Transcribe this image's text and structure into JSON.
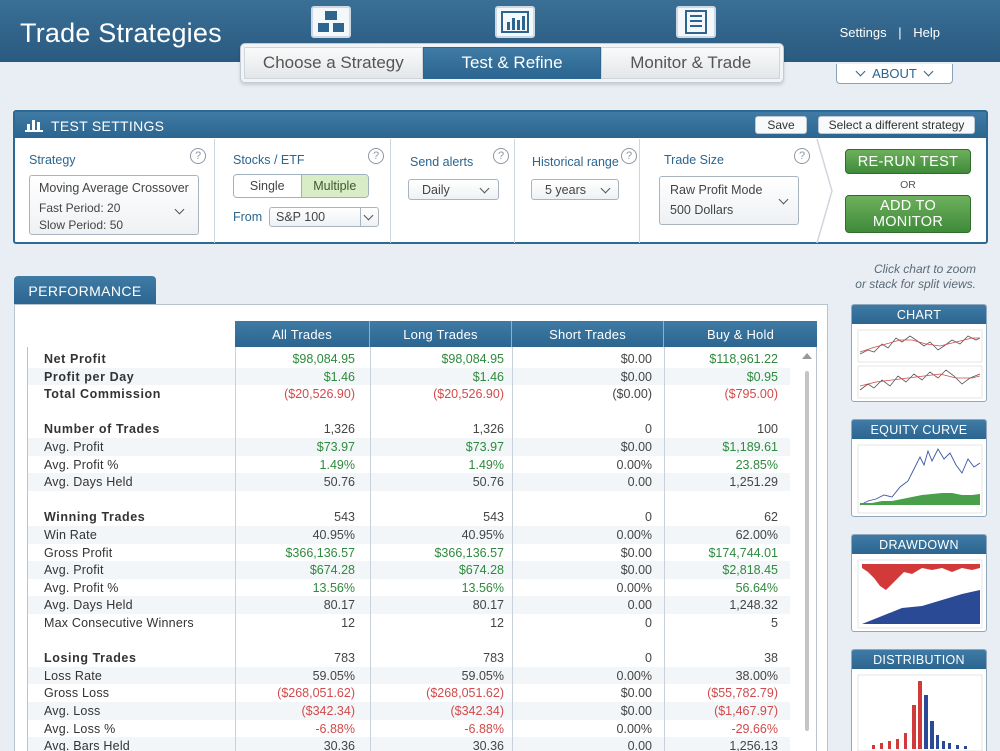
{
  "header": {
    "title": "Trade Strategies",
    "links": [
      "Settings",
      "|",
      "Help"
    ],
    "tabs": [
      {
        "label": "Choose a Strategy",
        "active": false
      },
      {
        "label": "Test & Refine",
        "active": true
      },
      {
        "label": "Monitor & Trade",
        "active": false
      }
    ],
    "about_label": "ABOUT"
  },
  "settings": {
    "title": "TEST SETTINGS",
    "save_label": "Save",
    "select_label": "Select a different strategy",
    "strategy": {
      "label": "Strategy",
      "name": "Moving Average Crossover",
      "fast": "Fast Period:  20",
      "slow": "Slow Period:  50"
    },
    "stocks": {
      "label": "Stocks / ETF",
      "single": "Single",
      "multiple": "Multiple",
      "from_label": "From",
      "from_value": "S&P 100"
    },
    "alerts": {
      "label": "Send alerts",
      "value": "Daily"
    },
    "range": {
      "label": "Historical range",
      "value": "5 years"
    },
    "trade_size": {
      "label": "Trade Size",
      "mode": "Raw Profit Mode",
      "amount": "500 Dollars"
    },
    "rerun_label": "RE-RUN TEST",
    "or_label": "OR",
    "add_label_1": "ADD TO",
    "add_label_2": "MONITOR"
  },
  "performance": {
    "tab_label": "PERFORMANCE",
    "columns": [
      "All Trades",
      "Long Trades",
      "Short Trades",
      "Buy & Hold"
    ],
    "rows": [
      {
        "label": "Net Profit",
        "bold": true,
        "vals": [
          "$98,084.95",
          "$98,084.95",
          "$0.00",
          "$118,961.22"
        ],
        "cls": [
          "pos",
          "pos",
          "neu",
          "pos"
        ]
      },
      {
        "label": "Profit per Day",
        "bold": true,
        "vals": [
          "$1.46",
          "$1.46",
          "$0.00",
          "$0.95"
        ],
        "cls": [
          "pos",
          "pos",
          "neu",
          "pos"
        ]
      },
      {
        "label": "Total Commission",
        "bold": true,
        "vals": [
          "($20,526.90)",
          "($20,526.90)",
          "($0.00)",
          "($795.00)"
        ],
        "cls": [
          "neg",
          "neg",
          "neu",
          "neg"
        ]
      },
      {
        "blank": true
      },
      {
        "label": "Number of Trades",
        "bold": true,
        "vals": [
          "1,326",
          "1,326",
          "0",
          "100"
        ],
        "cls": [
          "neu",
          "neu",
          "neu",
          "neu"
        ]
      },
      {
        "label": "Avg. Profit",
        "vals": [
          "$73.97",
          "$73.97",
          "$0.00",
          "$1,189.61"
        ],
        "cls": [
          "pos",
          "pos",
          "neu",
          "pos"
        ]
      },
      {
        "label": "Avg. Profit %",
        "vals": [
          "1.49%",
          "1.49%",
          "0.00%",
          "23.85%"
        ],
        "cls": [
          "pos",
          "pos",
          "neu",
          "pos"
        ]
      },
      {
        "label": "Avg. Days Held",
        "vals": [
          "50.76",
          "50.76",
          "0.00",
          "1,251.29"
        ],
        "cls": [
          "neu",
          "neu",
          "neu",
          "neu"
        ]
      },
      {
        "blank": true
      },
      {
        "label": "Winning Trades",
        "bold": true,
        "vals": [
          "543",
          "543",
          "0",
          "62"
        ],
        "cls": [
          "neu",
          "neu",
          "neu",
          "neu"
        ]
      },
      {
        "label": "Win Rate",
        "vals": [
          "40.95%",
          "40.95%",
          "0.00%",
          "62.00%"
        ],
        "cls": [
          "neu",
          "neu",
          "neu",
          "neu"
        ]
      },
      {
        "label": "Gross Profit",
        "vals": [
          "$366,136.57",
          "$366,136.57",
          "$0.00",
          "$174,744.01"
        ],
        "cls": [
          "pos",
          "pos",
          "neu",
          "pos"
        ]
      },
      {
        "label": "Avg. Profit",
        "vals": [
          "$674.28",
          "$674.28",
          "$0.00",
          "$2,818.45"
        ],
        "cls": [
          "pos",
          "pos",
          "neu",
          "pos"
        ]
      },
      {
        "label": "Avg. Profit %",
        "vals": [
          "13.56%",
          "13.56%",
          "0.00%",
          "56.64%"
        ],
        "cls": [
          "pos",
          "pos",
          "neu",
          "pos"
        ]
      },
      {
        "label": "Avg. Days Held",
        "vals": [
          "80.17",
          "80.17",
          "0.00",
          "1,248.32"
        ],
        "cls": [
          "neu",
          "neu",
          "neu",
          "neu"
        ]
      },
      {
        "label": "Max Consecutive Winners",
        "vals": [
          "12",
          "12",
          "0",
          "5"
        ],
        "cls": [
          "neu",
          "neu",
          "neu",
          "neu"
        ]
      },
      {
        "blank": true
      },
      {
        "label": "Losing Trades",
        "bold": true,
        "vals": [
          "783",
          "783",
          "0",
          "38"
        ],
        "cls": [
          "neu",
          "neu",
          "neu",
          "neu"
        ]
      },
      {
        "label": "Loss Rate",
        "vals": [
          "59.05%",
          "59.05%",
          "0.00%",
          "38.00%"
        ],
        "cls": [
          "neu",
          "neu",
          "neu",
          "neu"
        ]
      },
      {
        "label": "Gross Loss",
        "vals": [
          "($268,051.62)",
          "($268,051.62)",
          "$0.00",
          "($55,782.79)"
        ],
        "cls": [
          "neg",
          "neg",
          "neu",
          "neg"
        ]
      },
      {
        "label": "Avg. Loss",
        "vals": [
          "($342.34)",
          "($342.34)",
          "$0.00",
          "($1,467.97)"
        ],
        "cls": [
          "neg",
          "neg",
          "neu",
          "neg"
        ]
      },
      {
        "label": "Avg. Loss %",
        "vals": [
          "-6.88%",
          "-6.88%",
          "0.00%",
          "-29.66%"
        ],
        "cls": [
          "neg",
          "neg",
          "neu",
          "neg"
        ]
      },
      {
        "label": "Avg. Bars Held",
        "vals": [
          "30.36",
          "30.36",
          "0.00",
          "1,256.13"
        ],
        "cls": [
          "neu",
          "neu",
          "neu",
          "neu"
        ]
      }
    ]
  },
  "side": {
    "hint_line1": "Click chart to zoom",
    "hint_line2": "or stack for split views.",
    "thumbs": [
      "CHART",
      "EQUITY CURVE",
      "DRAWDOWN",
      "DISTRIBUTION"
    ]
  },
  "colors": {
    "brand": "#2b6590",
    "positive": "#2e8a3c",
    "negative": "#d24a4a",
    "action": "#4c9a44"
  }
}
